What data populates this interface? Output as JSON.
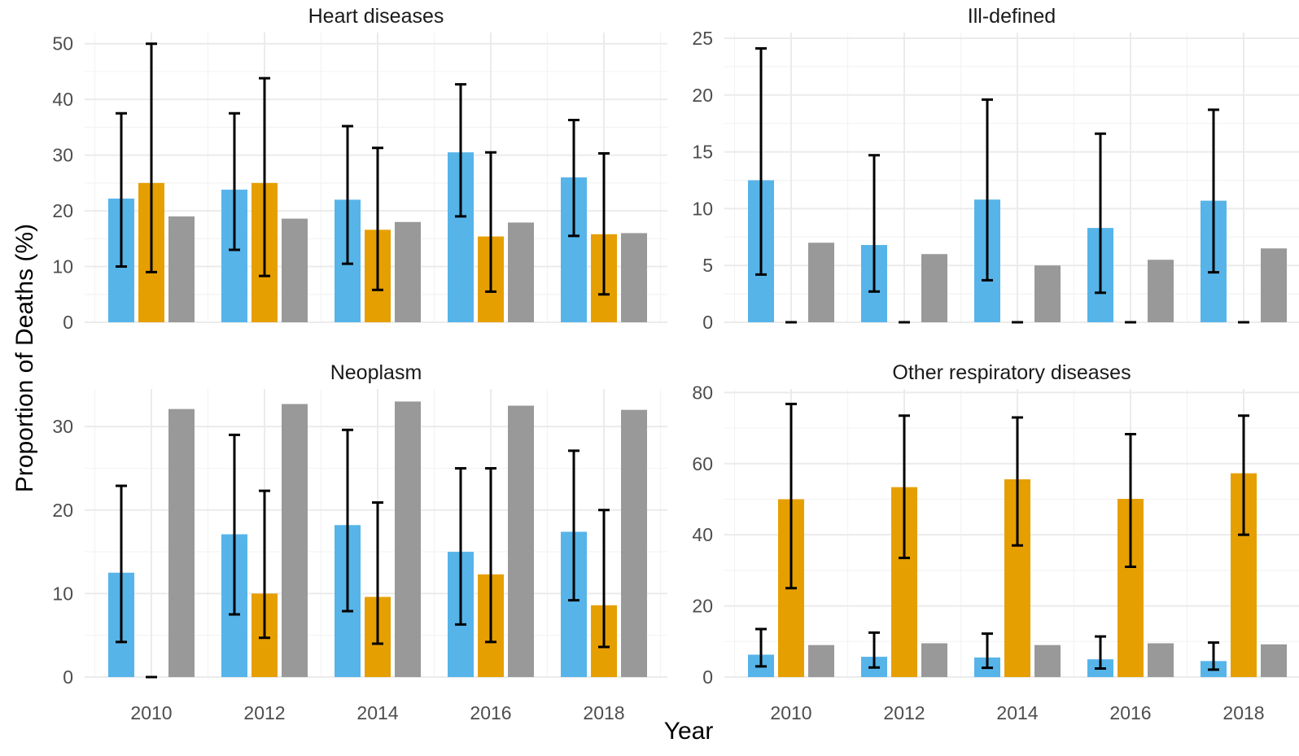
{
  "chart_data": {
    "type": "bar",
    "xlabel": "Year",
    "ylabel": "Proportion of Deaths (%)",
    "x": [
      2010,
      2012,
      2014,
      2016,
      2018
    ],
    "x_tick_labels": [
      "2010",
      "2012",
      "2014",
      "2016",
      "2018"
    ],
    "series_colors": [
      "#56b4e9",
      "#e69f00",
      "#999999"
    ],
    "grid": true,
    "legend": "none",
    "panels": [
      {
        "title": "Heart diseases",
        "ylim": [
          0,
          52
        ],
        "y_ticks": [
          0,
          10,
          20,
          30,
          40,
          50
        ],
        "series": [
          {
            "values": [
              22.2,
              23.8,
              22.0,
              30.5,
              26.0
            ],
            "error_low": [
              10.0,
              13.0,
              10.5,
              19.0,
              15.5
            ],
            "error_high": [
              37.5,
              37.5,
              35.2,
              42.7,
              36.3
            ]
          },
          {
            "values": [
              25.0,
              25.0,
              16.6,
              15.4,
              15.8
            ],
            "error_low": [
              9.0,
              8.3,
              5.8,
              5.5,
              5.0
            ],
            "error_high": [
              50.0,
              43.8,
              31.3,
              30.5,
              30.3
            ]
          },
          {
            "values": [
              19.0,
              18.6,
              18.0,
              17.9,
              16.0
            ]
          }
        ]
      },
      {
        "title": "Ill-defined",
        "ylim": [
          0,
          25.5
        ],
        "y_ticks": [
          0,
          5,
          10,
          15,
          20,
          25
        ],
        "series": [
          {
            "values": [
              12.5,
              6.8,
              10.8,
              8.3,
              10.7
            ],
            "error_low": [
              4.2,
              2.7,
              3.7,
              2.6,
              4.4
            ],
            "error_high": [
              24.1,
              14.7,
              19.6,
              16.6,
              18.7
            ]
          },
          {
            "values": [
              0,
              0,
              0,
              0,
              0
            ],
            "error_low": [
              0,
              0,
              0,
              0,
              0
            ],
            "error_high": [
              0,
              0,
              0,
              0,
              0
            ]
          },
          {
            "values": [
              7.0,
              6.0,
              5.0,
              5.5,
              6.5
            ]
          }
        ]
      },
      {
        "title": "Neoplasm",
        "ylim": [
          0,
          34.5
        ],
        "y_ticks": [
          0,
          10,
          20,
          30
        ],
        "series": [
          {
            "values": [
              12.5,
              17.1,
              18.2,
              15.0,
              17.4
            ],
            "error_low": [
              4.2,
              7.5,
              7.9,
              6.3,
              9.2
            ],
            "error_high": [
              22.9,
              29.0,
              29.6,
              25.0,
              27.1
            ]
          },
          {
            "values": [
              0,
              10.0,
              9.6,
              12.3,
              8.6
            ],
            "error_low": [
              0,
              4.7,
              4.0,
              4.2,
              3.6
            ],
            "error_high": [
              0,
              22.3,
              20.9,
              25.0,
              20.0
            ]
          },
          {
            "values": [
              32.1,
              32.7,
              33.0,
              32.5,
              32.0
            ]
          }
        ]
      },
      {
        "title": "Other respiratory diseases",
        "ylim": [
          0,
          81
        ],
        "y_ticks": [
          0,
          20,
          40,
          60,
          80
        ],
        "series": [
          {
            "values": [
              6.3,
              5.7,
              5.5,
              5.0,
              4.5
            ],
            "error_low": [
              3.0,
              2.7,
              2.6,
              2.4,
              2.1
            ],
            "error_high": [
              13.5,
              12.5,
              12.2,
              11.4,
              9.7
            ]
          },
          {
            "values": [
              50.0,
              53.4,
              55.6,
              50.1,
              57.3
            ],
            "error_low": [
              25.0,
              33.5,
              37.0,
              31.0,
              40.0
            ],
            "error_high": [
              76.8,
              73.5,
              73.0,
              68.3,
              73.5
            ]
          },
          {
            "values": [
              9.0,
              9.5,
              9.0,
              9.5,
              9.2
            ]
          }
        ]
      }
    ]
  }
}
